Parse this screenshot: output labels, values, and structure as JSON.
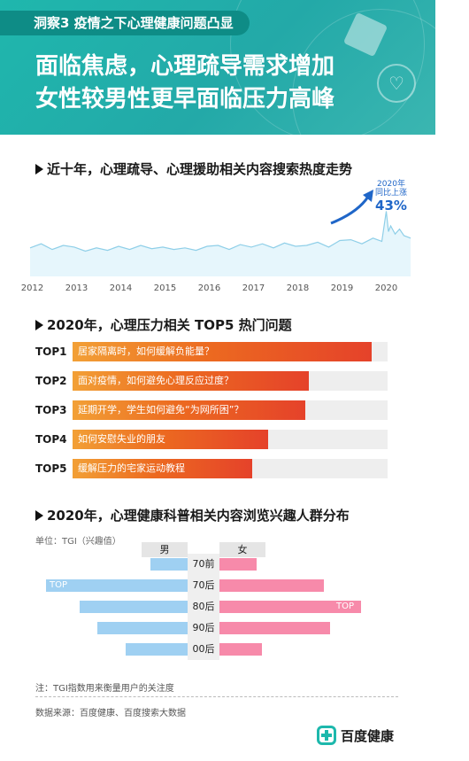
{
  "header": {
    "tag": "洞察3  疫情之下心理健康问题凸显",
    "title_line1": "面临焦虑，心理疏导需求增加",
    "title_line2": "女性较男性更早面临压力高峰"
  },
  "section1": {
    "title": "近十年，心理疏导、心理援助相关内容搜索热度走势"
  },
  "section2": {
    "title": "2020年，心理压力相关  TOP5  热门问题"
  },
  "section3": {
    "title": "2020年，心理健康科普相关内容浏览兴趣人群分布",
    "unit": "单位：TGI（兴趣值）",
    "legend_male": "男",
    "legend_female": "女"
  },
  "footer": {
    "note": "注：TGI指数用来衡量用户的关注度",
    "source": "数据来源：百度健康、百度搜索大数据",
    "brand": "百度健康"
  },
  "chart_data": [
    {
      "type": "area",
      "title": "近十年，心理疏导、心理援助相关内容搜索热度走势",
      "x_ticks": [
        "2012",
        "2013",
        "2014",
        "2015",
        "2016",
        "2017",
        "2018",
        "2019",
        "2020"
      ],
      "xlim": [
        2011.95,
        2020.55
      ],
      "ylim": [
        0,
        100
      ],
      "annotation": {
        "line1": "2020年",
        "line2": "同比上涨",
        "value": "43%"
      },
      "series": [
        {
          "x": [
            2011.95,
            2012.2,
            2012.45,
            2012.7,
            2012.95,
            2013.2,
            2013.45,
            2013.7,
            2013.95,
            2014.2,
            2014.45,
            2014.7,
            2014.95,
            2015.2,
            2015.45,
            2015.7,
            2015.95,
            2016.2,
            2016.45,
            2016.7,
            2016.95,
            2017.2,
            2017.45,
            2017.7,
            2017.95,
            2018.2,
            2018.45,
            2018.7,
            2018.95,
            2019.2,
            2019.45,
            2019.7,
            2019.9,
            2020.0,
            2020.05,
            2020.1,
            2020.2,
            2020.3,
            2020.4,
            2020.5,
            2020.55
          ],
          "values": [
            35,
            40,
            33,
            38,
            36,
            31,
            35,
            32,
            37,
            33,
            38,
            34,
            36,
            33,
            35,
            32,
            37,
            38,
            33,
            39,
            36,
            40,
            35,
            41,
            37,
            38,
            42,
            36,
            44,
            45,
            40,
            47,
            43,
            80,
            55,
            62,
            52,
            58,
            50,
            48,
            47
          ]
        }
      ]
    },
    {
      "type": "bar",
      "title": "2020年，心理压力相关  TOP5  热门问题",
      "categories": [
        "TOP1",
        "TOP2",
        "TOP3",
        "TOP4",
        "TOP5"
      ],
      "labels": [
        "居家隔离时，如何缓解负能量？",
        "面对疫情，如何避免心理反应过度？",
        "延期开学，学生如何避免“为网所困”？",
        "如何安慰失业的朋友",
        "缓解压力的宅家运动教程"
      ],
      "values": [
        95,
        75,
        74,
        62,
        57
      ],
      "xlim": [
        0,
        100
      ]
    },
    {
      "type": "bar",
      "title": "2020年，心理健康科普相关内容浏览兴趣人群分布",
      "categories": [
        "70前",
        "70后",
        "80后",
        "90后",
        "00后"
      ],
      "series": [
        {
          "name": "男",
          "values": [
            26,
            100,
            76,
            64,
            44
          ],
          "top_label": "TOP",
          "top_index": 1
        },
        {
          "name": "女",
          "values": [
            26,
            74,
            100,
            78,
            30
          ],
          "top_label": "TOP",
          "top_index": 2
        }
      ],
      "xlim": [
        0,
        100
      ]
    }
  ]
}
